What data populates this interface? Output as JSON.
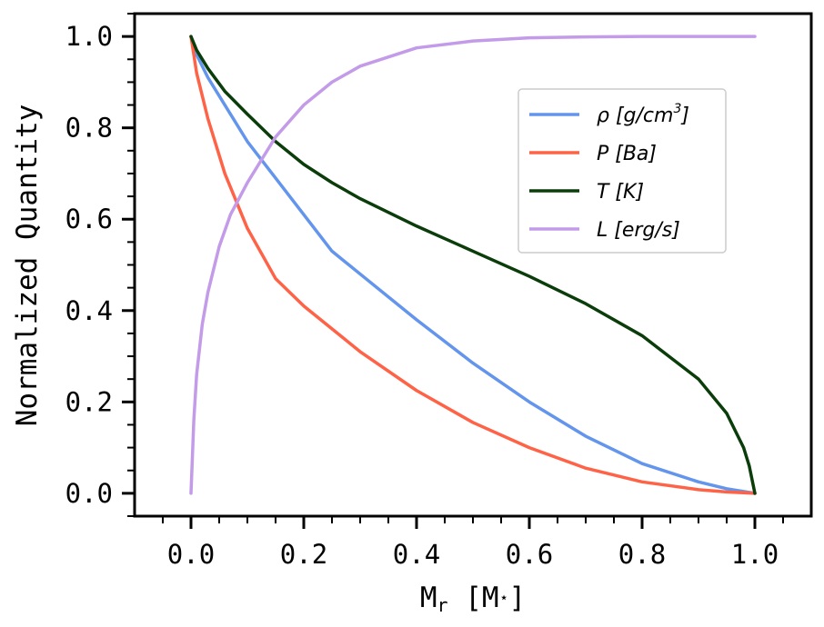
{
  "chart_data": {
    "type": "line",
    "title": "",
    "xlabel": "M_r [M_⋆]",
    "xlabel_main": "M",
    "xlabel_sub": "r",
    "xlabel_rest": " [M",
    "xlabel_star": "⋆",
    "xlabel_end": "]",
    "ylabel": "Normalized Quantity",
    "xlim": [
      -0.1,
      1.1
    ],
    "ylim": [
      -0.05,
      1.05
    ],
    "xticks": [
      "0.0",
      "0.2",
      "0.4",
      "0.6",
      "0.8",
      "1.0"
    ],
    "yticks": [
      "0.0",
      "0.2",
      "0.4",
      "0.6",
      "0.8",
      "1.0"
    ],
    "grid": false,
    "legend": "upper right",
    "series": [
      {
        "name": "ρ [g/cm³]",
        "color": "#6495ED",
        "x": [
          0.0,
          0.01,
          0.03,
          0.06,
          0.1,
          0.15,
          0.2,
          0.25,
          0.3,
          0.4,
          0.5,
          0.6,
          0.7,
          0.8,
          0.9,
          0.95,
          1.0
        ],
        "y": [
          1.0,
          0.96,
          0.91,
          0.85,
          0.77,
          0.69,
          0.61,
          0.53,
          0.48,
          0.38,
          0.285,
          0.2,
          0.125,
          0.065,
          0.025,
          0.01,
          0.0
        ]
      },
      {
        "name": "P [Ba]",
        "color": "#FF6347",
        "x": [
          0.0,
          0.01,
          0.03,
          0.06,
          0.1,
          0.15,
          0.2,
          0.25,
          0.3,
          0.4,
          0.5,
          0.6,
          0.7,
          0.8,
          0.9,
          0.95,
          1.0
        ],
        "y": [
          1.0,
          0.92,
          0.82,
          0.7,
          0.58,
          0.47,
          0.41,
          0.36,
          0.31,
          0.225,
          0.155,
          0.1,
          0.055,
          0.025,
          0.008,
          0.003,
          0.0
        ]
      },
      {
        "name": "T [K]",
        "color": "#0B3D0B",
        "x": [
          0.0,
          0.01,
          0.03,
          0.06,
          0.1,
          0.15,
          0.2,
          0.25,
          0.3,
          0.4,
          0.5,
          0.6,
          0.7,
          0.8,
          0.9,
          0.95,
          0.98,
          0.99,
          1.0
        ],
        "y": [
          1.0,
          0.97,
          0.93,
          0.88,
          0.83,
          0.77,
          0.72,
          0.68,
          0.645,
          0.585,
          0.53,
          0.475,
          0.415,
          0.345,
          0.25,
          0.175,
          0.1,
          0.06,
          0.0
        ]
      },
      {
        "name": "L [erg/s]",
        "color": "#C39BE8",
        "x": [
          0.0,
          0.005,
          0.01,
          0.02,
          0.03,
          0.05,
          0.07,
          0.1,
          0.15,
          0.2,
          0.25,
          0.3,
          0.4,
          0.5,
          0.6,
          0.7,
          0.8,
          0.9,
          1.0
        ],
        "y": [
          0.0,
          0.16,
          0.26,
          0.37,
          0.44,
          0.54,
          0.61,
          0.68,
          0.78,
          0.85,
          0.9,
          0.935,
          0.975,
          0.99,
          0.997,
          0.999,
          1.0,
          1.0,
          1.0
        ]
      }
    ]
  },
  "legend_labels": [
    {
      "base": "ρ [g/cm",
      "sup": "3",
      "end": "]"
    },
    {
      "base": "P [Ba]",
      "sup": "",
      "end": ""
    },
    {
      "base": "T [K]",
      "sup": "",
      "end": ""
    },
    {
      "base": "L [erg/s]",
      "sup": "",
      "end": ""
    }
  ]
}
